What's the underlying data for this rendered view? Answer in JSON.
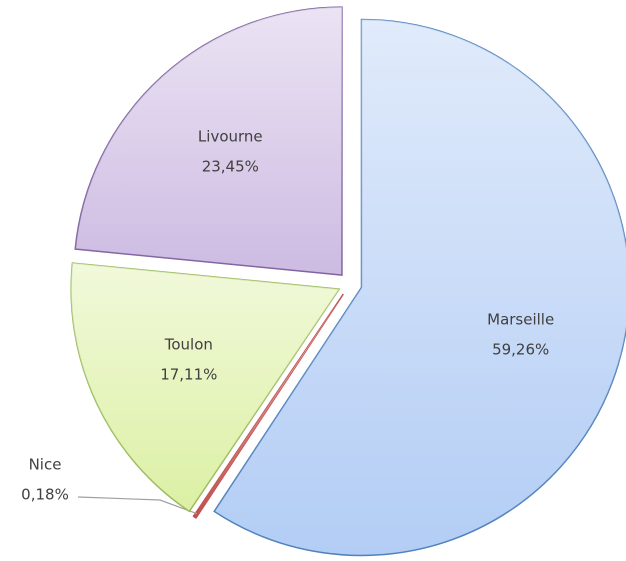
{
  "chart_data": {
    "type": "pie",
    "categories": [
      "Marseille",
      "Nice",
      "Toulon",
      "Livourne"
    ],
    "values": [
      59.26,
      0.18,
      17.11,
      23.45
    ],
    "value_labels": [
      "59,26%",
      "0,18%",
      "17,11%",
      "23,45%"
    ],
    "colors": [
      "#b3cdf5",
      "#c0504d",
      "#dcf0a4",
      "#cdbbe2"
    ],
    "borders": [
      "#4f81bd",
      "#c0504d",
      "#9bbb59",
      "#8064a2"
    ]
  }
}
